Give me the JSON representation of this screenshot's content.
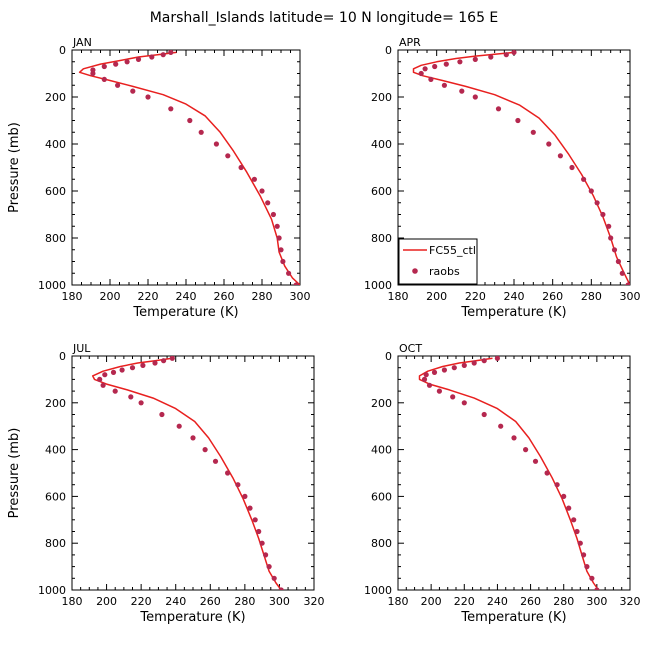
{
  "figure": {
    "title": "Marshall_Islands  latitude= 10 N longitude= 165 E"
  },
  "colors": {
    "model": "#e8201f",
    "obs": "#b5284f",
    "axis": "#000000"
  },
  "legend": {
    "model_label": "FC55_ctl",
    "obs_label": "raobs"
  },
  "chart_data": [
    {
      "type": "line",
      "title": "JAN",
      "xlabel": "Temperature (K)",
      "ylabel": "Pressure (mb)",
      "xlim": [
        180,
        300
      ],
      "ylim": [
        1000,
        0
      ],
      "xticks": [
        180,
        200,
        220,
        240,
        260,
        280,
        300
      ],
      "yticks": [
        0,
        200,
        400,
        600,
        800,
        1000
      ],
      "series": [
        {
          "name": "FC55_ctl",
          "points": [
            [
              235,
              10
            ],
            [
              225,
              20
            ],
            [
              215,
              30
            ],
            [
              205,
              45
            ],
            [
              195,
              60
            ],
            [
              186,
              80
            ],
            [
              184,
              95
            ],
            [
              190,
              110
            ],
            [
              200,
              130
            ],
            [
              212,
              155
            ],
            [
              228,
              190
            ],
            [
              240,
              230
            ],
            [
              250,
              280
            ],
            [
              258,
              350
            ],
            [
              265,
              430
            ],
            [
              272,
              520
            ],
            [
              279,
              620
            ],
            [
              285,
              720
            ],
            [
              288,
              800
            ],
            [
              289,
              860
            ],
            [
              292,
              920
            ],
            [
              296,
              970
            ],
            [
              300,
              1000
            ]
          ]
        },
        {
          "name": "raobs",
          "points": [
            [
              232,
              10
            ],
            [
              228,
              20
            ],
            [
              222,
              30
            ],
            [
              215,
              40
            ],
            [
              209,
              50
            ],
            [
              203,
              60
            ],
            [
              197,
              70
            ],
            [
              191,
              85
            ],
            [
              191,
              100
            ],
            [
              197,
              125
            ],
            [
              204,
              150
            ],
            [
              212,
              175
            ],
            [
              220,
              200
            ],
            [
              232,
              250
            ],
            [
              242,
              300
            ],
            [
              248,
              350
            ],
            [
              256,
              400
            ],
            [
              262,
              450
            ],
            [
              269,
              500
            ],
            [
              276,
              550
            ],
            [
              280,
              600
            ],
            [
              283,
              650
            ],
            [
              286,
              700
            ],
            [
              288,
              750
            ],
            [
              289,
              800
            ],
            [
              290,
              850
            ],
            [
              291,
              900
            ],
            [
              294,
              950
            ],
            [
              298,
              1000
            ]
          ]
        }
      ]
    },
    {
      "type": "line",
      "title": "APR",
      "xlabel": "Temperature (K)",
      "ylabel": "",
      "xlim": [
        180,
        300
      ],
      "ylim": [
        1000,
        0
      ],
      "xticks": [
        180,
        200,
        220,
        240,
        260,
        280,
        300
      ],
      "yticks": [
        0,
        200,
        400,
        600,
        800,
        1000
      ],
      "series": [
        {
          "name": "FC55_ctl",
          "points": [
            [
              240,
              10
            ],
            [
              230,
              18
            ],
            [
              220,
              26
            ],
            [
              210,
              36
            ],
            [
              200,
              50
            ],
            [
              192,
              65
            ],
            [
              188,
              80
            ],
            [
              188,
              95
            ],
            [
              193,
              110
            ],
            [
              203,
              130
            ],
            [
              215,
              155
            ],
            [
              230,
              190
            ],
            [
              243,
              235
            ],
            [
              253,
              290
            ],
            [
              261,
              360
            ],
            [
              268,
              440
            ],
            [
              275,
              530
            ],
            [
              281,
              620
            ],
            [
              286,
              710
            ],
            [
              290,
              800
            ],
            [
              293,
              880
            ],
            [
              297,
              950
            ],
            [
              300,
              1000
            ]
          ]
        },
        {
          "name": "raobs",
          "points": [
            [
              240,
              10
            ],
            [
              236,
              20
            ],
            [
              228,
              30
            ],
            [
              220,
              40
            ],
            [
              212,
              50
            ],
            [
              205,
              60
            ],
            [
              199,
              70
            ],
            [
              194,
              80
            ],
            [
              192,
              100
            ],
            [
              197,
              125
            ],
            [
              204,
              150
            ],
            [
              213,
              175
            ],
            [
              220,
              200
            ],
            [
              232,
              250
            ],
            [
              242,
              300
            ],
            [
              250,
              350
            ],
            [
              258,
              400
            ],
            [
              264,
              450
            ],
            [
              270,
              500
            ],
            [
              276,
              550
            ],
            [
              280,
              600
            ],
            [
              283,
              650
            ],
            [
              286,
              700
            ],
            [
              289,
              750
            ],
            [
              290,
              800
            ],
            [
              292,
              850
            ],
            [
              294,
              900
            ],
            [
              296,
              950
            ],
            [
              299,
              1000
            ]
          ]
        }
      ]
    },
    {
      "type": "line",
      "title": "JUL",
      "xlabel": "Temperature (K)",
      "ylabel": "Pressure (mb)",
      "xlim": [
        180,
        320
      ],
      "ylim": [
        1000,
        0
      ],
      "xticks": [
        180,
        200,
        220,
        240,
        260,
        280,
        300,
        320
      ],
      "yticks": [
        0,
        200,
        400,
        600,
        800,
        1000
      ],
      "series": [
        {
          "name": "FC55_ctl",
          "points": [
            [
              238,
              10
            ],
            [
              228,
              20
            ],
            [
              218,
              30
            ],
            [
              208,
              45
            ],
            [
              198,
              65
            ],
            [
              192,
              85
            ],
            [
              193,
              100
            ],
            [
              200,
              120
            ],
            [
              212,
              145
            ],
            [
              227,
              180
            ],
            [
              240,
              225
            ],
            [
              251,
              280
            ],
            [
              259,
              350
            ],
            [
              266,
              430
            ],
            [
              273,
              520
            ],
            [
              279,
              610
            ],
            [
              284,
              700
            ],
            [
              288,
              780
            ],
            [
              291,
              850
            ],
            [
              294,
              920
            ],
            [
              298,
              970
            ],
            [
              301,
              1000
            ]
          ]
        },
        {
          "name": "raobs",
          "points": [
            [
              238,
              10
            ],
            [
              233,
              20
            ],
            [
              228,
              30
            ],
            [
              221,
              40
            ],
            [
              215,
              50
            ],
            [
              209,
              60
            ],
            [
              204,
              70
            ],
            [
              199,
              80
            ],
            [
              196,
              100
            ],
            [
              198,
              125
            ],
            [
              205,
              150
            ],
            [
              214,
              175
            ],
            [
              220,
              200
            ],
            [
              232,
              250
            ],
            [
              242,
              300
            ],
            [
              250,
              350
            ],
            [
              257,
              400
            ],
            [
              263,
              450
            ],
            [
              270,
              500
            ],
            [
              276,
              550
            ],
            [
              280,
              600
            ],
            [
              283,
              650
            ],
            [
              286,
              700
            ],
            [
              288,
              750
            ],
            [
              290,
              800
            ],
            [
              292,
              850
            ],
            [
              294,
              900
            ],
            [
              297,
              950
            ],
            [
              301,
              1000
            ]
          ]
        }
      ]
    },
    {
      "type": "line",
      "title": "OCT",
      "xlabel": "Temperature (K)",
      "ylabel": "",
      "xlim": [
        180,
        320
      ],
      "ylim": [
        1000,
        0
      ],
      "xticks": [
        180,
        200,
        220,
        240,
        260,
        280,
        300,
        320
      ],
      "yticks": [
        0,
        200,
        400,
        600,
        800,
        1000
      ],
      "series": [
        {
          "name": "FC55_ctl",
          "points": [
            [
              237,
              10
            ],
            [
              227,
              20
            ],
            [
              217,
              30
            ],
            [
              207,
              45
            ],
            [
              198,
              65
            ],
            [
              193,
              85
            ],
            [
              193,
              100
            ],
            [
              199,
              120
            ],
            [
              211,
              145
            ],
            [
              226,
              180
            ],
            [
              240,
              225
            ],
            [
              251,
              280
            ],
            [
              259,
              350
            ],
            [
              266,
              430
            ],
            [
              273,
              520
            ],
            [
              279,
              610
            ],
            [
              284,
              700
            ],
            [
              288,
              780
            ],
            [
              291,
              850
            ],
            [
              294,
              920
            ],
            [
              298,
              970
            ],
            [
              301,
              1000
            ]
          ]
        },
        {
          "name": "raobs",
          "points": [
            [
              240,
              10
            ],
            [
              232,
              20
            ],
            [
              226,
              30
            ],
            [
              220,
              40
            ],
            [
              214,
              50
            ],
            [
              208,
              60
            ],
            [
              202,
              70
            ],
            [
              197,
              80
            ],
            [
              196,
              100
            ],
            [
              199,
              125
            ],
            [
              205,
              150
            ],
            [
              213,
              175
            ],
            [
              220,
              200
            ],
            [
              232,
              250
            ],
            [
              242,
              300
            ],
            [
              250,
              350
            ],
            [
              257,
              400
            ],
            [
              263,
              450
            ],
            [
              270,
              500
            ],
            [
              276,
              550
            ],
            [
              280,
              600
            ],
            [
              283,
              650
            ],
            [
              286,
              700
            ],
            [
              288,
              750
            ],
            [
              290,
              800
            ],
            [
              292,
              850
            ],
            [
              294,
              900
            ],
            [
              297,
              950
            ],
            [
              300,
              1000
            ]
          ]
        }
      ]
    }
  ]
}
